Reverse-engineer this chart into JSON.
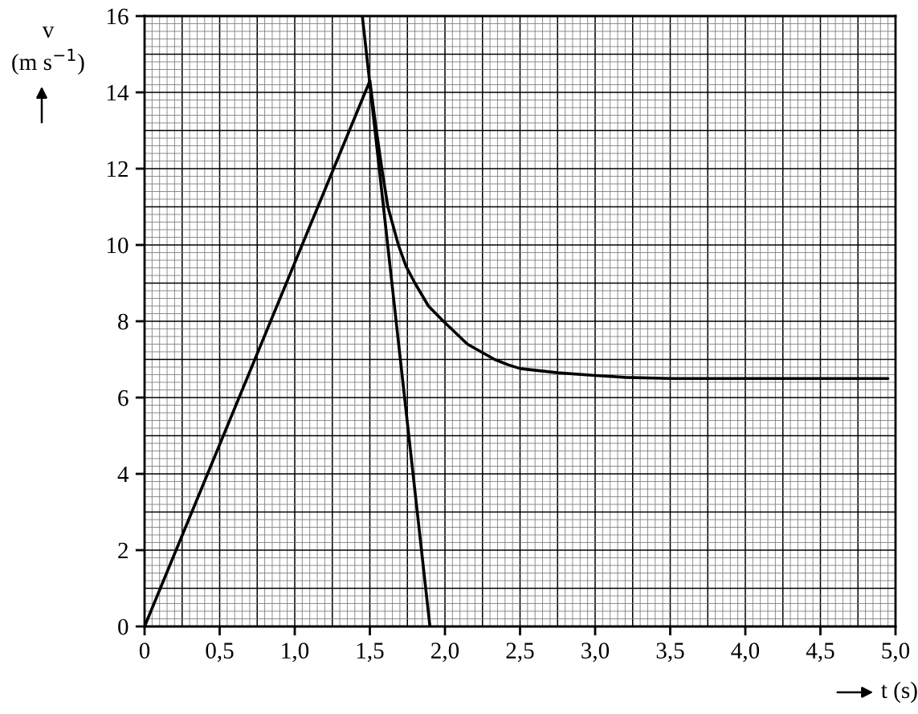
{
  "chart_data": {
    "type": "line",
    "xlabel": "t (s)",
    "ylabel": "v\n(m s$^{−1}$)",
    "xlim": [
      0,
      5
    ],
    "ylim": [
      0,
      16
    ],
    "xticks": [
      0,
      {
        "value": 0.5,
        "label": "0,5"
      },
      {
        "value": 1,
        "label": "1,0"
      },
      {
        "value": 1.5,
        "label": "1,5"
      },
      {
        "value": 2,
        "label": "2,0"
      },
      {
        "value": 2.5,
        "label": "2,5"
      },
      {
        "value": 3,
        "label": "3,0"
      },
      {
        "value": 3.5,
        "label": "3,5"
      },
      {
        "value": 4,
        "label": "4,0"
      },
      {
        "value": 4.5,
        "label": "4,5"
      },
      {
        "value": 5,
        "label": "5,0"
      }
    ],
    "yticks": [
      0,
      2,
      4,
      6,
      8,
      10,
      12,
      14,
      16
    ],
    "grid": true,
    "marker": "none",
    "line_style": "solid",
    "series": [
      {
        "color": "#000000",
        "x": [
          0,
          1.5
        ],
        "values": [
          0,
          14.3
        ]
      },
      {
        "color": "#000000",
        "x": [
          1.5,
          1.54,
          1.58,
          1.62,
          1.69,
          1.74,
          1.8,
          1.89,
          1.99,
          2.15,
          2.33,
          2.42,
          2.5,
          2.75,
          3.0,
          3.2,
          3.5,
          4.0,
          4.95
        ],
        "values": [
          14.3,
          13.1,
          12,
          11,
          10,
          9.45,
          9,
          8.4,
          8,
          7.4,
          7,
          6.86,
          6.76,
          6.65,
          6.58,
          6.53,
          6.5,
          6.5,
          6.5
        ]
      },
      {
        "color": "#000000",
        "x": [
          1.45,
          1.9
        ],
        "values": [
          16,
          0
        ]
      }
    ]
  }
}
